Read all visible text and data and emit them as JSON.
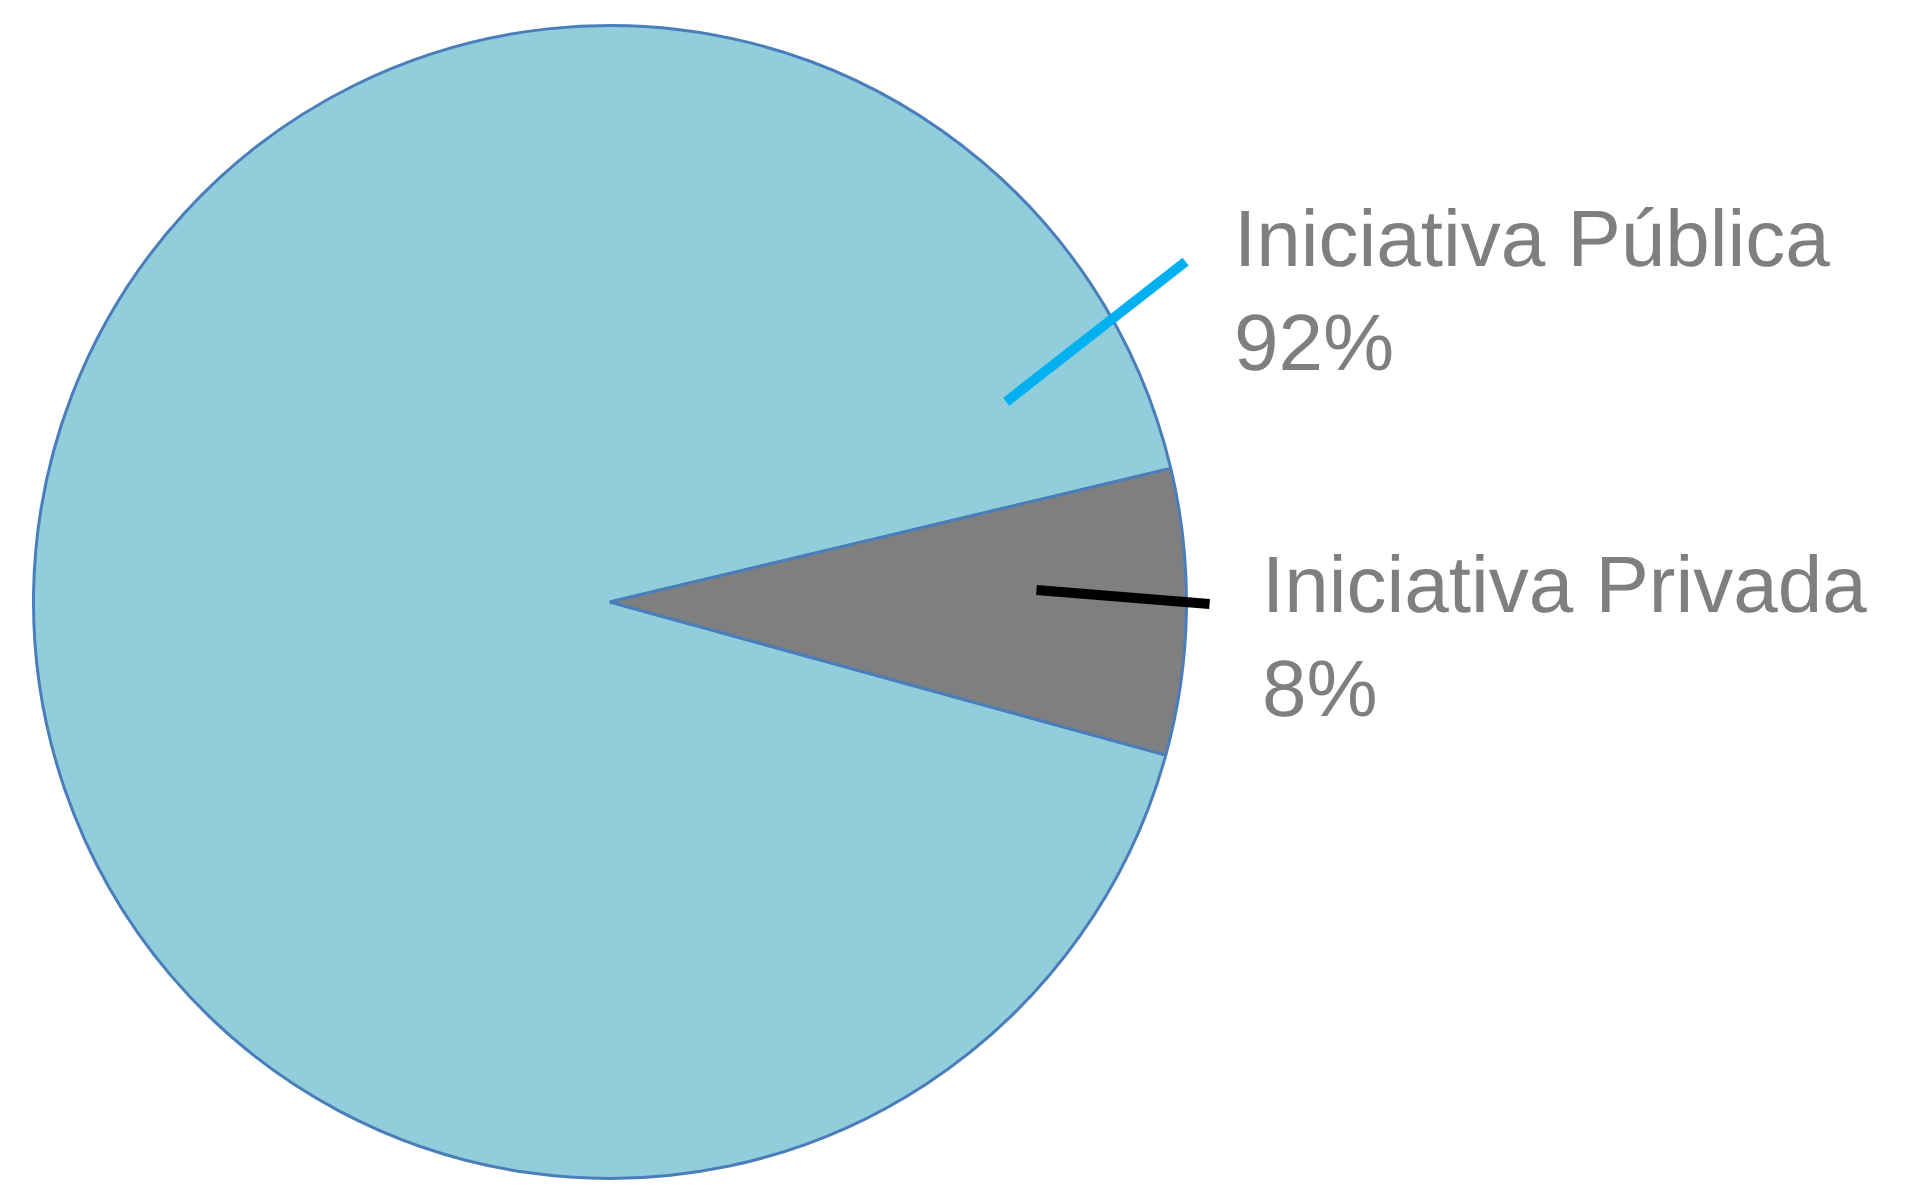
{
  "chart_data": {
    "type": "pie",
    "categories": [
      "Iniciativa Pública",
      "Iniciativa Privada"
    ],
    "values": [
      92,
      8
    ],
    "value_labels": [
      "92%",
      "8%"
    ],
    "colors": [
      "#92cddc",
      "#7f7f7f"
    ],
    "legend": false
  }
}
